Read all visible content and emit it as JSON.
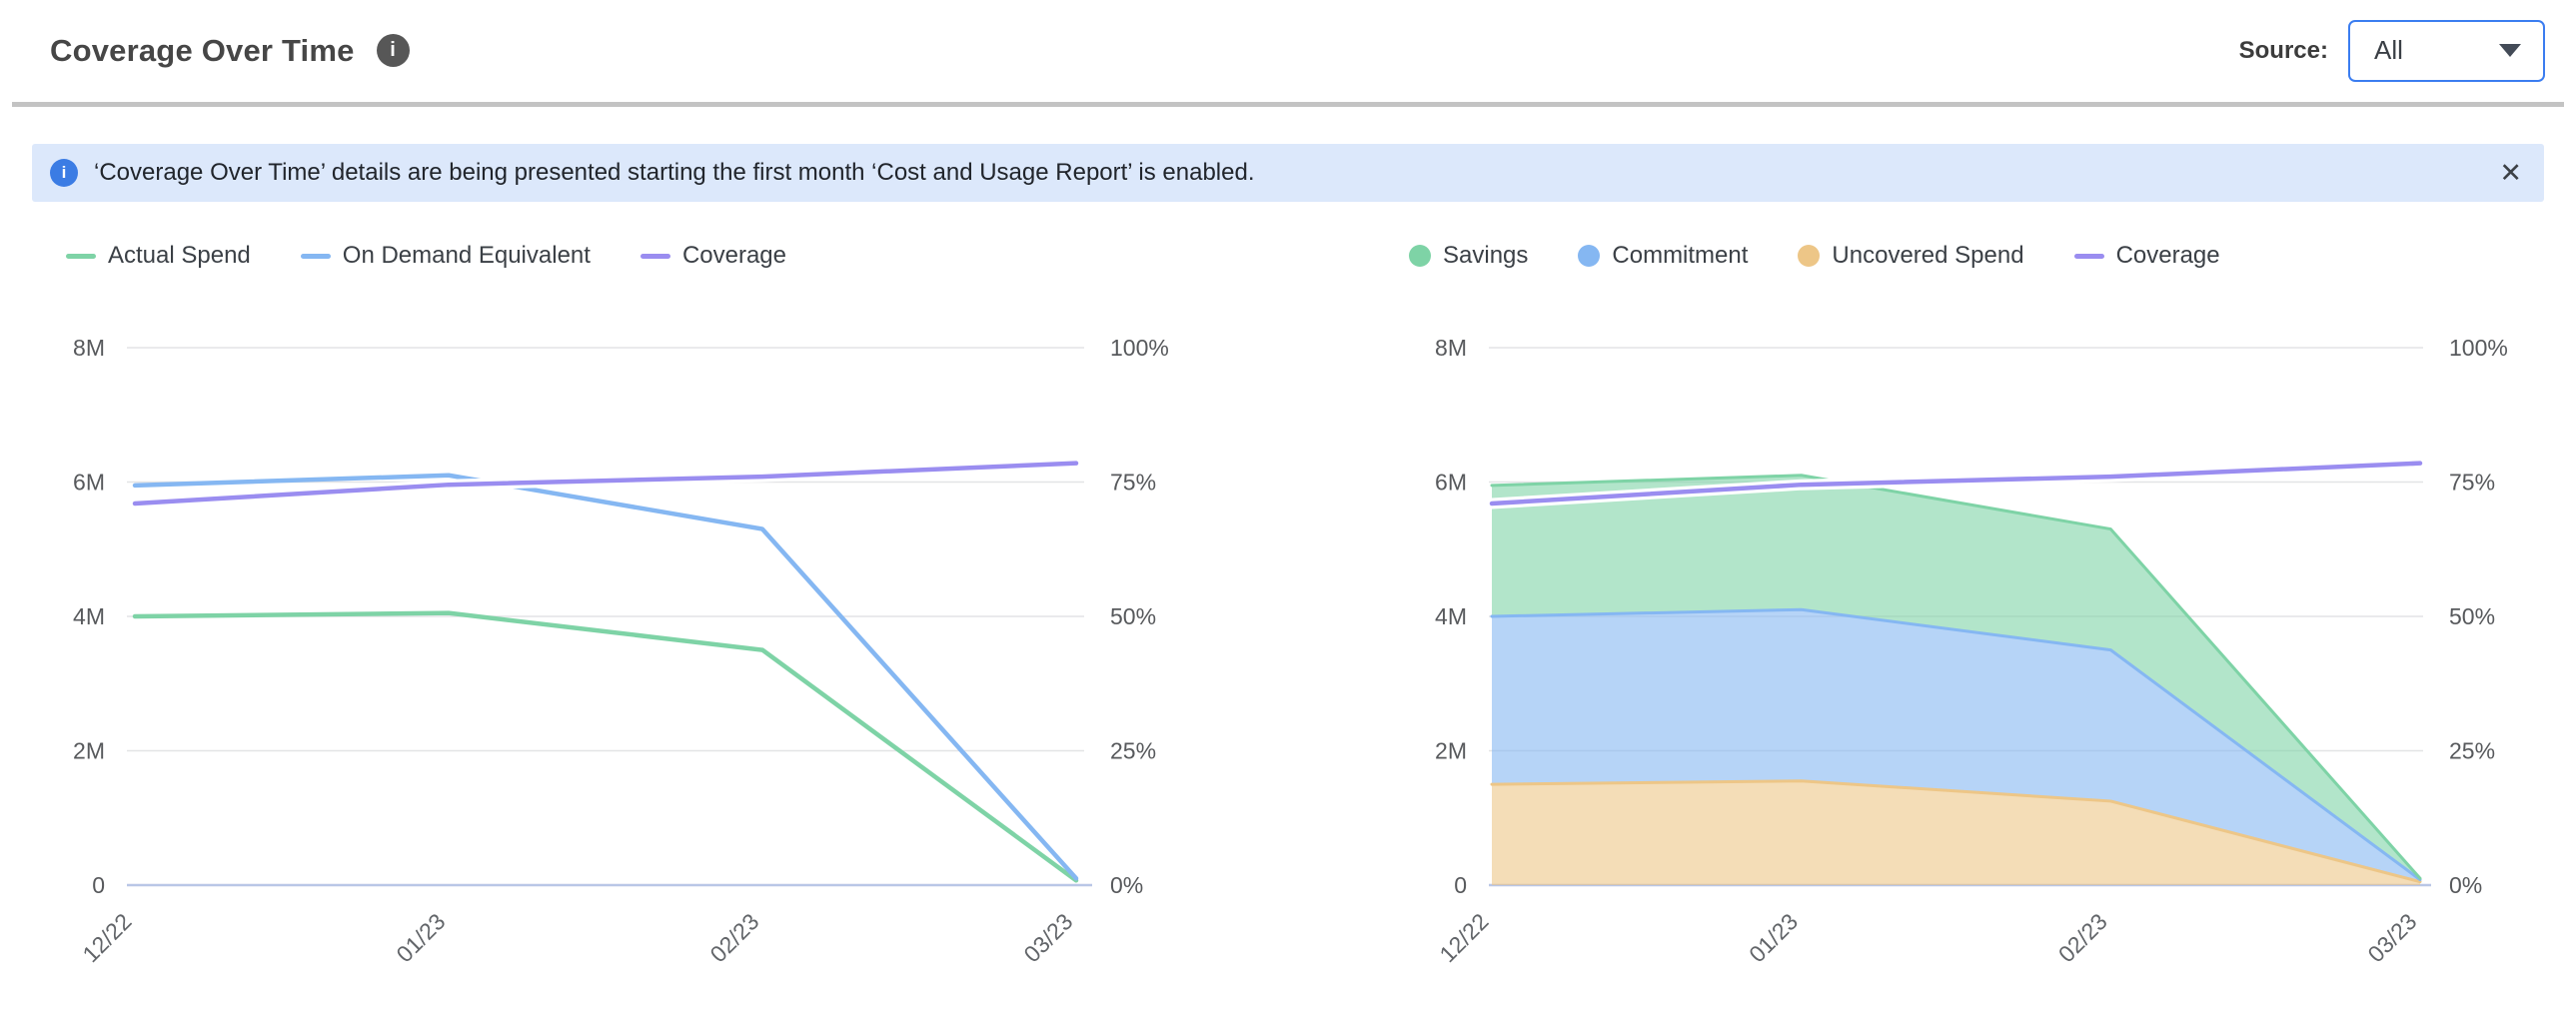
{
  "header": {
    "title": "Coverage Over Time",
    "source_label": "Source:",
    "source_value": "All"
  },
  "banner": {
    "text": "‘Coverage Over Time’ details are being presented starting the first month ‘Cost and Usage Report’ is enabled."
  },
  "icons": {
    "info_glyph": "i",
    "close_glyph": "✕"
  },
  "colors": {
    "accent_blue": "#3b7df0",
    "banner_bg": "#dce8fb",
    "banner_icon_blue": "#3b7ce4",
    "grid": "#e3e4e6",
    "axis_baseline": "#b9c6e6",
    "green": "#7ed3a6",
    "blue": "#85b7f2",
    "purple": "#9a8df0",
    "orange": "#edc687"
  },
  "chart_data": [
    {
      "type": "line",
      "title": "Coverage Over Time (spend lines)",
      "categories": [
        "12/22",
        "01/23",
        "02/23",
        "03/23"
      ],
      "grid": true,
      "legend_position": "top",
      "left_axis": {
        "unit": "M",
        "max": 8,
        "tick_values": [
          0,
          2,
          4,
          6,
          8
        ],
        "tick_labels": [
          "0",
          "2M",
          "4M",
          "6M",
          "8M"
        ]
      },
      "right_axis": {
        "unit": "%",
        "max": 100,
        "tick_values": [
          0,
          25,
          50,
          75,
          100
        ],
        "tick_labels": [
          "0%",
          "25%",
          "50%",
          "75%",
          "100%"
        ]
      },
      "series": [
        {
          "name": "Actual Spend",
          "kind": "line",
          "axis": "left",
          "color": "#7ed3a6",
          "values": [
            4.0,
            4.05,
            3.5,
            0.07
          ]
        },
        {
          "name": "On Demand Equivalent",
          "kind": "line",
          "axis": "left",
          "color": "#85b7f2",
          "values": [
            5.95,
            6.1,
            5.3,
            0.1
          ]
        },
        {
          "name": "Coverage",
          "kind": "line",
          "axis": "right",
          "color": "#9a8df0",
          "halo": true,
          "values": [
            71,
            74.5,
            76,
            78.5
          ]
        }
      ]
    },
    {
      "type": "area",
      "stacked": true,
      "title": "Coverage Over Time (spend breakdown)",
      "categories": [
        "12/22",
        "01/23",
        "02/23",
        "03/23"
      ],
      "grid": true,
      "legend_position": "top",
      "left_axis": {
        "unit": "M",
        "max": 8,
        "tick_values": [
          0,
          2,
          4,
          6,
          8
        ],
        "tick_labels": [
          "0",
          "2M",
          "4M",
          "6M",
          "8M"
        ]
      },
      "right_axis": {
        "unit": "%",
        "max": 100,
        "tick_values": [
          0,
          25,
          50,
          75,
          100
        ],
        "tick_labels": [
          "0%",
          "25%",
          "50%",
          "75%",
          "100%"
        ]
      },
      "series": [
        {
          "name": "Savings",
          "kind": "area",
          "axis": "left",
          "color": "#7ed3a6",
          "stack_index": 2,
          "values": [
            1.95,
            2.0,
            1.8,
            0.02
          ]
        },
        {
          "name": "Commitment",
          "kind": "area",
          "axis": "left",
          "color": "#85b7f2",
          "stack_index": 1,
          "values": [
            2.5,
            2.55,
            2.25,
            0.03
          ]
        },
        {
          "name": "Uncovered Spend",
          "kind": "area",
          "axis": "left",
          "color": "#edc687",
          "stack_index": 0,
          "values": [
            1.5,
            1.55,
            1.25,
            0.05
          ]
        },
        {
          "name": "Coverage",
          "kind": "line",
          "axis": "right",
          "color": "#9a8df0",
          "halo": true,
          "values": [
            71,
            74.5,
            76,
            78.5
          ]
        }
      ]
    }
  ]
}
